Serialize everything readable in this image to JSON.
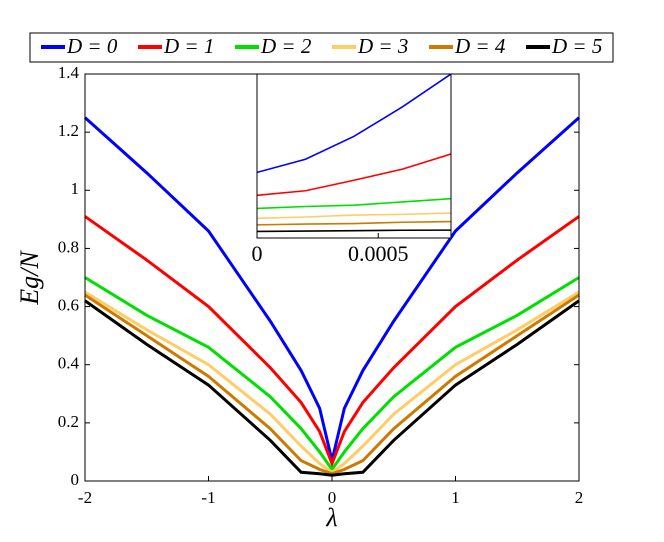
{
  "chart_data": [
    {
      "type": "line",
      "xlabel": "λ",
      "ylabel": "Eg/N",
      "x": [
        -2,
        -1.5,
        -1,
        -0.5,
        -0.25,
        -0.1,
        0,
        0.1,
        0.25,
        0.5,
        1,
        1.5,
        2
      ],
      "xlim": [
        -2,
        2
      ],
      "xticks": [
        -2,
        -1,
        0,
        1,
        2
      ],
      "ylim": [
        0,
        1.4
      ],
      "yticks": [
        0,
        0.2,
        0.4,
        0.6,
        0.8,
        1,
        1.2,
        1.4
      ],
      "series": [
        {
          "name": "D = 0",
          "color": "#0000ff",
          "values": [
            1.25,
            1.06,
            0.86,
            0.55,
            0.38,
            0.25,
            0.07,
            0.25,
            0.38,
            0.55,
            0.86,
            1.06,
            1.25
          ]
        },
        {
          "name": "D = 1",
          "color": "#ff0000",
          "values": [
            0.91,
            0.76,
            0.6,
            0.39,
            0.27,
            0.17,
            0.06,
            0.17,
            0.27,
            0.39,
            0.6,
            0.76,
            0.91
          ]
        },
        {
          "name": "D = 2",
          "color": "#00e000",
          "values": [
            0.7,
            0.57,
            0.46,
            0.29,
            0.18,
            0.1,
            0.04,
            0.1,
            0.18,
            0.29,
            0.46,
            0.57,
            0.7
          ]
        },
        {
          "name": "D = 3",
          "color": "#ffcc66",
          "values": [
            0.65,
            0.52,
            0.4,
            0.23,
            0.12,
            0.06,
            0.03,
            0.06,
            0.12,
            0.23,
            0.4,
            0.52,
            0.65
          ]
        },
        {
          "name": "D = 4",
          "color": "#cc7a00",
          "values": [
            0.64,
            0.5,
            0.36,
            0.18,
            0.07,
            0.04,
            0.025,
            0.04,
            0.07,
            0.18,
            0.36,
            0.5,
            0.64
          ]
        },
        {
          "name": "D = 5",
          "color": "#000000",
          "values": [
            0.62,
            0.47,
            0.33,
            0.14,
            0.03,
            0.025,
            0.02,
            0.025,
            0.03,
            0.14,
            0.33,
            0.47,
            0.62
          ]
        }
      ]
    },
    {
      "type": "line",
      "x": [
        0,
        0.0002,
        0.0004,
        0.0006,
        0.0008
      ],
      "xlim": [
        0,
        0.0008
      ],
      "xticks": [
        0,
        0.0005
      ],
      "ylim": [
        0.015,
        0.14
      ],
      "series": [
        {
          "color": "#0000ff",
          "values": [
            0.065,
            0.075,
            0.0925,
            0.115,
            0.14
          ]
        },
        {
          "color": "#ff0000",
          "values": [
            0.0475,
            0.051,
            0.059,
            0.0675,
            0.079
          ]
        },
        {
          "color": "#00e000",
          "values": [
            0.0375,
            0.039,
            0.04,
            0.0425,
            0.045
          ]
        },
        {
          "color": "#ffcc66",
          "values": [
            0.03,
            0.031,
            0.0325,
            0.033,
            0.034
          ]
        },
        {
          "color": "#cc7a00",
          "values": [
            0.025,
            0.0256,
            0.026,
            0.027,
            0.0275
          ]
        },
        {
          "color": "#000000",
          "values": [
            0.02,
            0.0203,
            0.0206,
            0.0209,
            0.021
          ]
        }
      ]
    }
  ]
}
